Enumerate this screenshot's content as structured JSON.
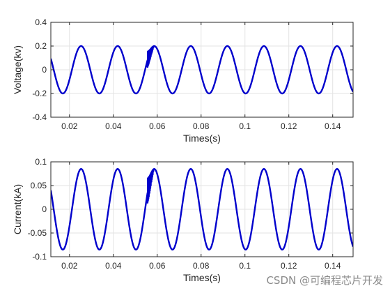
{
  "chart_data": [
    {
      "type": "line",
      "ylabel": "Voltage(kv)",
      "xlabel": "Times(s)",
      "xlim": [
        0.0115,
        0.1493
      ],
      "ylim": [
        -0.4,
        0.4
      ],
      "xticks": [
        0.02,
        0.04,
        0.06,
        0.08,
        0.1,
        0.12,
        0.14
      ],
      "xtick_labels": [
        "0.02",
        "0.04",
        "0.06",
        "0.08",
        "0.1",
        "0.12",
        "0.14"
      ],
      "yticks": [
        -0.4,
        -0.2,
        0,
        0.2,
        0.4
      ],
      "ytick_labels": [
        "-0.4",
        "-0.2",
        "0",
        "0.2",
        "0.4"
      ],
      "grid": true,
      "series": [
        {
          "color": "#0000cc",
          "waveform": "sine",
          "amplitude": 0.2,
          "period": 0.01667,
          "peak_x": 0.0253,
          "transient": {
            "x_start": 0.0555,
            "x_end": 0.0585,
            "min": -0.02,
            "max": 0.205
          }
        }
      ]
    },
    {
      "type": "line",
      "ylabel": "Current(kA)",
      "xlabel": "Times(s)",
      "xlim": [
        0.0115,
        0.1493
      ],
      "ylim": [
        -0.1,
        0.1
      ],
      "xticks": [
        0.02,
        0.04,
        0.06,
        0.08,
        0.1,
        0.12,
        0.14
      ],
      "xtick_labels": [
        "0.02",
        "0.04",
        "0.06",
        "0.08",
        "0.1",
        "0.12",
        "0.14"
      ],
      "yticks": [
        -0.1,
        -0.05,
        0,
        0.05,
        0.1
      ],
      "ytick_labels": [
        "-0.1",
        "-0.05",
        "0",
        "0.05",
        "0.1"
      ],
      "grid": true,
      "series": [
        {
          "color": "#0000cc",
          "waveform": "sine",
          "amplitude": 0.085,
          "period": 0.01667,
          "peak_x": 0.0253,
          "transient": {
            "x_start": 0.0555,
            "x_end": 0.0585,
            "min": -0.0015,
            "max": 0.087
          }
        }
      ]
    }
  ],
  "watermark": "CSDN @可编程芯片开发"
}
